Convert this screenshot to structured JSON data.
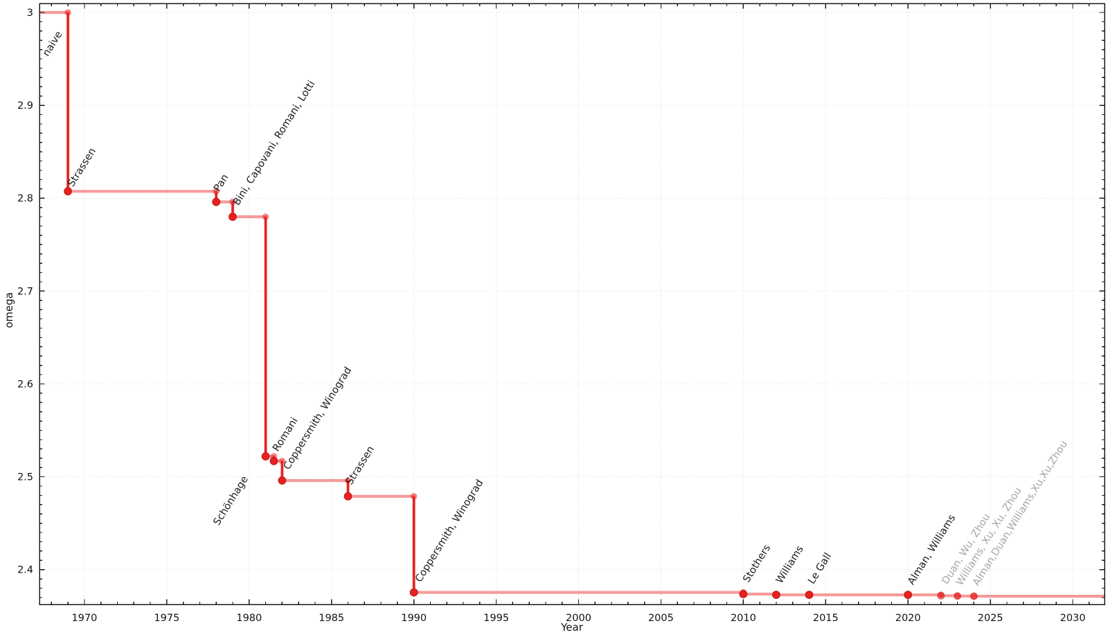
{
  "style": {
    "background": "#ffffff",
    "line_light": "rgba(232,33,31,0.45)",
    "line_solid": "#e8211f",
    "corner_dot": "rgba(232,33,31,0.5)",
    "recent_dot": "rgba(232,33,31,0.6)",
    "label_black": "#1c1c1c",
    "label_gray": "#a6a6a6",
    "grid_color": "#dcdcdc",
    "axis_color": "#1a1a1a"
  },
  "chart_data": {
    "type": "line",
    "subtype": "step_post",
    "title": "",
    "xlabel": "Year",
    "ylabel": "omega",
    "grid": "dotted",
    "legend": "none",
    "xlim": [
      1967.27,
      2031.93
    ],
    "ylim": [
      2.3625,
      3.0097
    ],
    "xticks": [
      1970,
      1975,
      1980,
      1985,
      1990,
      1995,
      2000,
      2005,
      2010,
      2015,
      2020,
      2025,
      2030
    ],
    "yticks": [
      {
        "v": 2.4,
        "t": "2.4"
      },
      {
        "v": 2.5,
        "t": "2.5"
      },
      {
        "v": 2.6,
        "t": "2.6"
      },
      {
        "v": 2.7,
        "t": "2.7"
      },
      {
        "v": 2.8,
        "t": "2.8"
      },
      {
        "v": 2.9,
        "t": "2.9"
      },
      {
        "v": 3,
        "t": "3"
      }
    ],
    "x_minor_step": 1,
    "y_minor_step": 0.01,
    "start": {
      "label": "naive",
      "omega": 3
    },
    "points": [
      {
        "label": "Strassen",
        "year": 1969,
        "omega": 2.8074,
        "recent": false
      },
      {
        "label": "Pan",
        "year": 1978,
        "omega": 2.796,
        "recent": false
      },
      {
        "label": "Bini, Capovani, Romani, Lotti",
        "year": 1979,
        "omega": 2.78,
        "recent": false
      },
      {
        "label": "Schönhage",
        "year": 1981,
        "omega": 2.522,
        "recent": false
      },
      {
        "label": "Romani",
        "year": 1981.5,
        "omega": 2.517,
        "recent": false
      },
      {
        "label": "Coppersmith, Winograd",
        "year": 1982,
        "omega": 2.496,
        "recent": false
      },
      {
        "label": "Strassen",
        "year": 1986,
        "omega": 2.479,
        "recent": false
      },
      {
        "label": "Coppersmith, Winograd",
        "year": 1990,
        "omega": 2.3755,
        "recent": false
      },
      {
        "label": "Stothers",
        "year": 2010,
        "omega": 2.3737,
        "recent": false
      },
      {
        "label": "Williams",
        "year": 2012,
        "omega": 2.3729,
        "recent": false
      },
      {
        "label": "Le Gall",
        "year": 2014,
        "omega": 2.3728639,
        "recent": false
      },
      {
        "label": "Alman, Williams",
        "year": 2020,
        "omega": 2.3728596,
        "recent": false
      },
      {
        "label": "Duan, Wu, Zhou",
        "year": 2022,
        "omega": 2.37188,
        "recent": true
      },
      {
        "label": "Williams, Xu, Xu, Zhou",
        "year": 2023,
        "omega": 2.371552,
        "recent": true
      },
      {
        "label": "Alman,Duan,Williams,Xu,Xu,Zhou",
        "year": 2024,
        "omega": 2.371339,
        "recent": true
      }
    ],
    "annotations": [
      {
        "text": "naive",
        "x": 1967.78,
        "y": 2.952,
        "shade": "black"
      },
      {
        "text": "Strassen",
        "x": 1969.3,
        "y": 2.8115,
        "shade": "black"
      },
      {
        "text": "Pan",
        "x": 1978.17,
        "y": 2.8065,
        "shade": "black"
      },
      {
        "text": "Bini, Capovani, Romani, Lotti",
        "x": 1979.34,
        "y": 2.7915,
        "shade": "black"
      },
      {
        "text": "Schönhage",
        "x": 1978.15,
        "y": 2.447,
        "shade": "black"
      },
      {
        "text": "Romani",
        "x": 1981.75,
        "y": 2.5265,
        "shade": "black"
      },
      {
        "text": "Coppersmith, Winograd",
        "x": 1982.4,
        "y": 2.507,
        "shade": "black"
      },
      {
        "text": "Strassen",
        "x": 1986.2,
        "y": 2.4905,
        "shade": "black"
      },
      {
        "text": "Coppersmith, Winograd",
        "x": 1990.4,
        "y": 2.3858,
        "shade": "black"
      },
      {
        "text": "Stothers",
        "x": 2010.3,
        "y": 2.3855,
        "shade": "black"
      },
      {
        "text": "Williams",
        "x": 2012.3,
        "y": 2.3845,
        "shade": "black"
      },
      {
        "text": "Le Gall",
        "x": 2014.25,
        "y": 2.3838,
        "shade": "black"
      },
      {
        "text": "Alman, Williams",
        "x": 2020.3,
        "y": 2.383,
        "shade": "black"
      },
      {
        "text": "Duan, Wu, Zhou",
        "x": 2022.38,
        "y": 2.3835,
        "shade": "gray"
      },
      {
        "text": "Williams, Xu, Xu, Zhou",
        "x": 2023.25,
        "y": 2.3822,
        "shade": "gray"
      },
      {
        "text": "Alman,Duan,Williams,Xu,Xu,Zhou",
        "x": 2024.25,
        "y": 2.3818,
        "shade": "gray"
      }
    ]
  }
}
